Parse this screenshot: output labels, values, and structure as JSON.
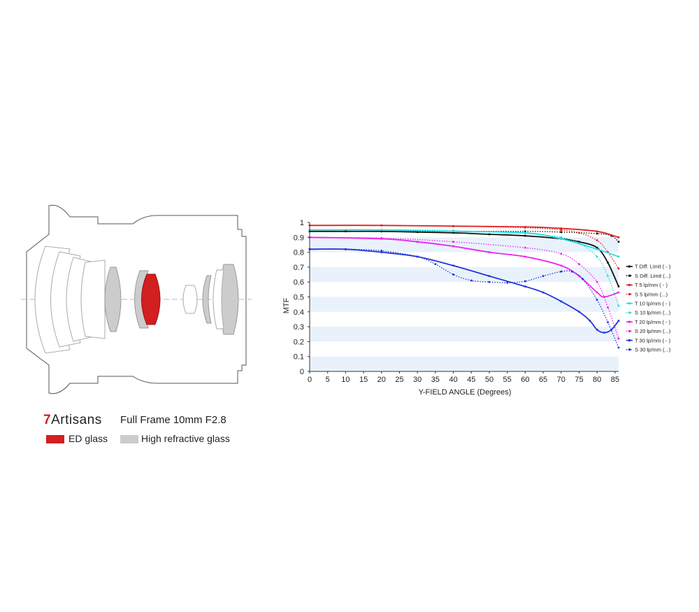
{
  "brand": {
    "seven": "7",
    "name": "Artisans"
  },
  "model_label": "Full Frame 10mm F2.8",
  "legend": [
    {
      "label": "ED glass",
      "color": "#d21f1f"
    },
    {
      "label": "High refractive glass",
      "color": "#cccccc"
    }
  ],
  "chart_data": {
    "type": "line",
    "xlabel": "Y-FIELD ANGLE (Degrees)",
    "ylabel": "MTF",
    "xlim": [
      0,
      86
    ],
    "ylim": [
      0,
      1
    ],
    "xticks": [
      "0",
      "5",
      "10",
      "15",
      "20",
      "25",
      "30",
      "35",
      "40",
      "45",
      "50",
      "55",
      "60",
      "65",
      "70",
      "75",
      "80",
      "85"
    ],
    "yticks": [
      "0",
      "0.1",
      "0.2",
      "0.3",
      "0.4",
      "0.5",
      "0.6",
      "0.7",
      "0.8",
      "0.9",
      "1"
    ],
    "grid": "horizontal bands",
    "legend_position": "right",
    "series": [
      {
        "name": "T Diff. Limit ( - )",
        "color": "#111111",
        "dash": "solid",
        "x": [
          0,
          10,
          20,
          30,
          40,
          50,
          60,
          70,
          75,
          80,
          83,
          86
        ],
        "y": [
          0.94,
          0.94,
          0.94,
          0.935,
          0.93,
          0.92,
          0.91,
          0.89,
          0.87,
          0.83,
          0.73,
          0.57
        ]
      },
      {
        "name": "S Diff. Limit (...)",
        "color": "#111111",
        "dash": "dotted",
        "x": [
          0,
          20,
          40,
          60,
          70,
          80,
          84,
          86
        ],
        "y": [
          0.94,
          0.94,
          0.94,
          0.94,
          0.935,
          0.925,
          0.91,
          0.87
        ]
      },
      {
        "name": "T 5 lp/mm ( - )",
        "color": "#e02020",
        "dash": "solid",
        "x": [
          0,
          20,
          40,
          60,
          70,
          80,
          86
        ],
        "y": [
          0.98,
          0.98,
          0.975,
          0.97,
          0.96,
          0.94,
          0.9
        ]
      },
      {
        "name": "S 5 lp/mm (...)",
        "color": "#e02020",
        "dash": "dotted",
        "x": [
          0,
          20,
          40,
          60,
          70,
          75,
          80,
          83,
          86
        ],
        "y": [
          0.98,
          0.98,
          0.975,
          0.965,
          0.95,
          0.93,
          0.88,
          0.8,
          0.69
        ]
      },
      {
        "name": "T 10 lp/mm ( - )",
        "color": "#22dddd",
        "dash": "solid",
        "x": [
          0,
          20,
          40,
          60,
          70,
          80,
          86
        ],
        "y": [
          0.95,
          0.95,
          0.94,
          0.93,
          0.89,
          0.82,
          0.77
        ]
      },
      {
        "name": "S 10 lp/mm (...)",
        "color": "#22dddd",
        "dash": "dotted",
        "x": [
          0,
          20,
          40,
          60,
          70,
          75,
          80,
          83,
          86
        ],
        "y": [
          0.95,
          0.95,
          0.945,
          0.925,
          0.9,
          0.86,
          0.77,
          0.64,
          0.44
        ]
      },
      {
        "name": "T 20 lp/mm ( - )",
        "color": "#ee22ee",
        "dash": "solid",
        "x": [
          0,
          20,
          30,
          40,
          50,
          60,
          70,
          75,
          80,
          82,
          86
        ],
        "y": [
          0.9,
          0.89,
          0.87,
          0.84,
          0.8,
          0.77,
          0.71,
          0.64,
          0.53,
          0.5,
          0.53
        ]
      },
      {
        "name": "S 20 lp/mm (...)",
        "color": "#ee22ee",
        "dash": "dotted",
        "x": [
          0,
          20,
          40,
          60,
          70,
          75,
          80,
          83,
          86
        ],
        "y": [
          0.9,
          0.895,
          0.87,
          0.83,
          0.79,
          0.72,
          0.6,
          0.43,
          0.22
        ]
      },
      {
        "name": "T 30 lp/mm ( - )",
        "color": "#2233dd",
        "dash": "solid",
        "x": [
          0,
          10,
          20,
          30,
          40,
          50,
          60,
          65,
          70,
          75,
          78,
          80,
          82,
          84,
          86
        ],
        "y": [
          0.82,
          0.82,
          0.8,
          0.77,
          0.71,
          0.64,
          0.57,
          0.53,
          0.47,
          0.4,
          0.34,
          0.28,
          0.26,
          0.28,
          0.34
        ]
      },
      {
        "name": "S 30 lp/mm (...)",
        "color": "#2233dd",
        "dash": "dotted",
        "x": [
          0,
          10,
          20,
          30,
          35,
          40,
          45,
          50,
          55,
          60,
          65,
          70,
          73,
          76,
          80,
          83,
          86
        ],
        "y": [
          0.82,
          0.82,
          0.81,
          0.77,
          0.72,
          0.65,
          0.61,
          0.6,
          0.595,
          0.605,
          0.64,
          0.67,
          0.67,
          0.62,
          0.48,
          0.33,
          0.16
        ]
      }
    ]
  }
}
